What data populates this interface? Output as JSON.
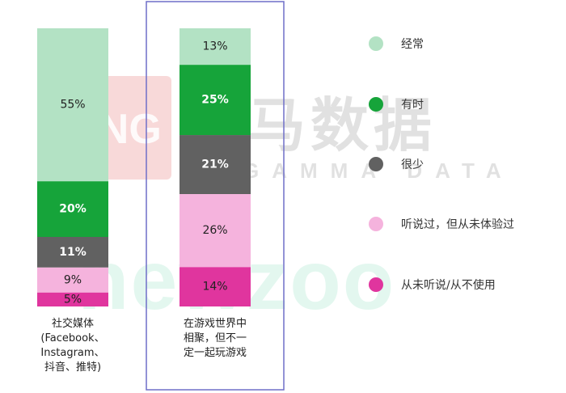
{
  "chart_data": {
    "type": "bar",
    "stacked": true,
    "categories": [
      "社交媒体\n(Facebook、\nInstagram、\n抖音、推特)",
      "在游戏世界中\n相聚，但不一\n定一起玩游戏"
    ],
    "series": [
      {
        "name": "经常",
        "values": [
          55,
          13
        ],
        "labels": [
          "55%",
          "13%"
        ],
        "color": "#b3e2c4"
      },
      {
        "name": "有时",
        "values": [
          20,
          25
        ],
        "labels": [
          "20%",
          "25%"
        ],
        "color": "#16a43a"
      },
      {
        "name": "很少",
        "values": [
          11,
          21
        ],
        "labels": [
          "11%",
          "21%"
        ],
        "color": "#616161"
      },
      {
        "name": "听说过，但从未体验过",
        "values": [
          9,
          26
        ],
        "labels": [
          "9%",
          "26%"
        ],
        "color": "#f5b3dd"
      },
      {
        "name": "从未听说/从不使用",
        "values": [
          5,
          14
        ],
        "labels": [
          "5%",
          "14%"
        ],
        "color": "#e0359e"
      }
    ],
    "highlighted_category": 1,
    "highlight_color": "#6f6fc8",
    "legend_position": "right"
  },
  "watermarks": {
    "cng": "CNG",
    "brand_cn": "伽马数据",
    "brand_en": "GAMMA DATA",
    "newzoo": "newzoo"
  }
}
